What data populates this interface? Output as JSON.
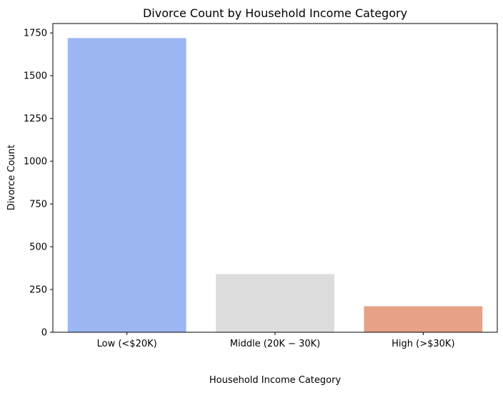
{
  "chart_data": {
    "type": "bar",
    "title": "Divorce Count by Household Income Category",
    "xlabel": "Household Income Category",
    "ylabel": "Divorce Count",
    "categories": [
      "Low (<$20K)",
      "Middle (20K − 30K)",
      "High (>$30K)"
    ],
    "values": [
      1720,
      340,
      152
    ],
    "colors": [
      "#9bb6f2",
      "#dcdcdc",
      "#e7a186"
    ],
    "ylim": [
      0,
      1805
    ],
    "yticks": [
      0,
      250,
      500,
      750,
      1000,
      1250,
      1500,
      1750
    ],
    "grid": false,
    "legend": "none"
  }
}
